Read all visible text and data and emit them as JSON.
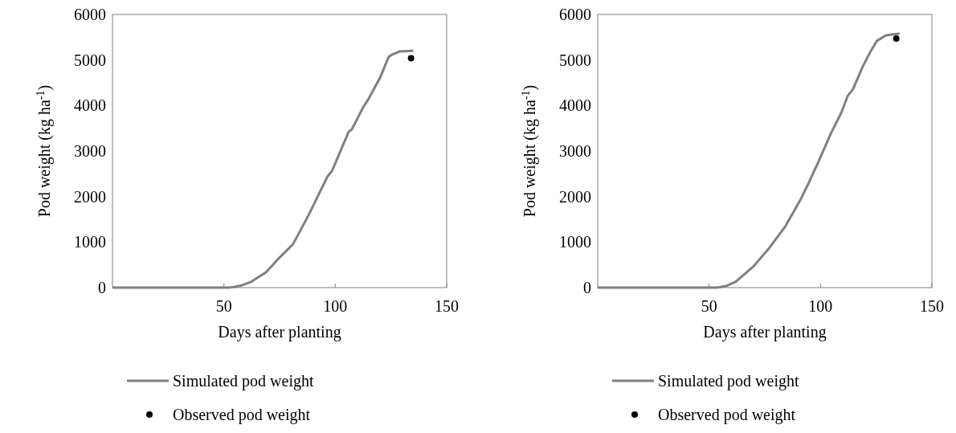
{
  "chart_data": [
    {
      "type": "line",
      "xlabel": "Days after planting",
      "ylabel": "Pod weight (kg ha$^{-1}$)",
      "xlim": [
        0,
        150
      ],
      "xticks": [
        50,
        100,
        150
      ],
      "ylim": [
        0,
        6000
      ],
      "yticks": [
        0,
        1000,
        2000,
        3000,
        4000,
        5000,
        6000
      ],
      "grid": false,
      "legend": "bottom",
      "series": [
        {
          "name": "Simulated pod weight",
          "type": "line",
          "color": "#808080",
          "marker": "none",
          "line_style": "solid",
          "x": [
            0,
            52,
            54,
            58,
            62,
            69,
            74,
            81,
            88,
            96.5,
            98.6,
            106,
            107.5,
            112.5,
            115,
            120,
            124,
            125.6,
            129,
            135
          ],
          "values": [
            0,
            0,
            10,
            50,
            120,
            340,
            610,
            950,
            1590,
            2440,
            2570,
            3420,
            3480,
            3960,
            4150,
            4600,
            5070,
            5120,
            5190,
            5200
          ]
        },
        {
          "name": "Observed pod weight",
          "type": "scatter",
          "color": "#000000",
          "marker": "circle",
          "x": [
            134
          ],
          "values": [
            5040
          ]
        }
      ]
    },
    {
      "type": "line",
      "xlabel": "Days after planting",
      "ylabel": "Pod weight (kg ha$^{-1}$)",
      "xlim": [
        0,
        150
      ],
      "xticks": [
        50,
        100,
        150
      ],
      "ylim": [
        0,
        6000
      ],
      "yticks": [
        0,
        1000,
        2000,
        3000,
        4000,
        5000,
        6000
      ],
      "grid": false,
      "legend": "bottom",
      "series": [
        {
          "name": "Simulated pod weight",
          "type": "line",
          "color": "#808080",
          "marker": "none",
          "line_style": "solid",
          "x": [
            0,
            53,
            55,
            58,
            62,
            70,
            77,
            84,
            91,
            95,
            97.8,
            98.5,
            104.7,
            109.5,
            112.2,
            114.6,
            119,
            122.5,
            125.3,
            129.4,
            135.5
          ],
          "values": [
            0,
            0,
            10,
            40,
            130,
            470,
            870,
            1330,
            1930,
            2330,
            2630,
            2700,
            3390,
            3860,
            4210,
            4360,
            4860,
            5190,
            5420,
            5540,
            5580
          ]
        },
        {
          "name": "Observed pod weight",
          "type": "scatter",
          "color": "#000000",
          "marker": "circle",
          "x": [
            134
          ],
          "values": [
            5470
          ]
        }
      ]
    }
  ]
}
